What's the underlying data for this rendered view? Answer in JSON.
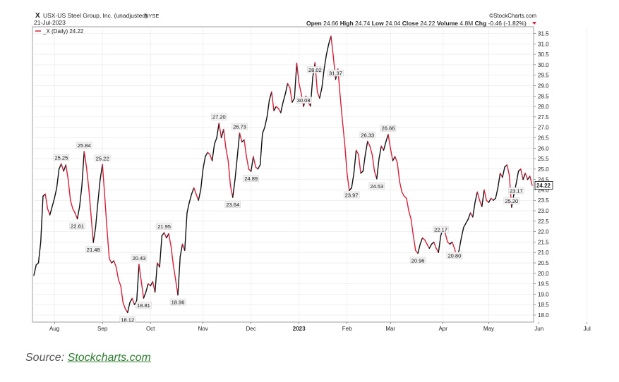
{
  "header": {
    "ticker": "X",
    "company": "USX-US Steel Group, Inc. (unadjusted)",
    "exchange": "NYSE",
    "date": "21-Jul-2023",
    "watermark": "©StockCharts.com",
    "ohlc": [
      {
        "label": "Open",
        "value": "24.66"
      },
      {
        "label": "High",
        "value": "24.74"
      },
      {
        "label": "Low",
        "value": "24.04"
      },
      {
        "label": "Close",
        "value": "24.22"
      },
      {
        "label": "Volume",
        "value": "4.8M"
      },
      {
        "label": "Chg",
        "value": "-0.46 (-1.82%)"
      }
    ],
    "legend": "_X (Daily) 24.22",
    "last_price": "24.22"
  },
  "source": {
    "prefix": "Source: ",
    "link": "Stockcharts.com"
  },
  "colors": {
    "up": "#111111",
    "down": "#d8203a",
    "grid": "#e6e6e6",
    "frame": "#888888",
    "chg_arrow": "#d8203a"
  },
  "chart_data": {
    "type": "line",
    "ylim": [
      17.8,
      31.8
    ],
    "y_ticks": [
      "18.0",
      "18.5",
      "19.0",
      "19.5",
      "20.0",
      "20.5",
      "21.0",
      "21.5",
      "22.0",
      "22.5",
      "23.0",
      "23.5",
      "24.0",
      "24.5",
      "25.0",
      "25.5",
      "26.0",
      "26.5",
      "27.0",
      "27.5",
      "28.0",
      "28.5",
      "29.0",
      "29.5",
      "30.0",
      "30.5",
      "31.0",
      "31.5"
    ],
    "x_ticks": [
      {
        "label": "Aug",
        "i": 9,
        "bold": false
      },
      {
        "label": "Sep",
        "i": 30,
        "bold": false
      },
      {
        "label": "Oct",
        "i": 51,
        "bold": false
      },
      {
        "label": "Nov",
        "i": 74,
        "bold": false
      },
      {
        "label": "Dec",
        "i": 95,
        "bold": false
      },
      {
        "label": "2023",
        "i": 116,
        "bold": true
      },
      {
        "label": "Feb",
        "i": 137,
        "bold": false
      },
      {
        "label": "Mar",
        "i": 156,
        "bold": false
      },
      {
        "label": "Apr",
        "i": 179,
        "bold": false
      },
      {
        "label": "May",
        "i": 199,
        "bold": false
      },
      {
        "label": "Jun",
        "i": 221,
        "bold": false
      },
      {
        "label": "Jul",
        "i": 242,
        "bold": false
      }
    ],
    "series": [
      {
        "values": [
          19.9,
          20.4,
          20.5,
          21.5,
          23.7,
          23.8,
          23.1,
          22.8,
          23.2,
          23.6,
          24.1,
          25.0,
          25.25,
          24.9,
          25.2,
          24.5,
          23.5,
          23.1,
          22.9,
          22.61,
          23.2,
          24.2,
          25.84,
          25.1,
          24.1,
          22.8,
          21.48,
          22.2,
          23.4,
          24.5,
          25.22,
          23.7,
          22.1,
          20.7,
          20.5,
          20.6,
          20.3,
          19.7,
          19.4,
          18.6,
          18.3,
          18.12,
          18.6,
          18.8,
          18.5,
          18.7,
          20.43,
          19.6,
          18.81,
          19.1,
          19.5,
          19.4,
          19.6,
          19.1,
          20.5,
          20.3,
          21.8,
          21.95,
          21.7,
          21.9,
          21.3,
          20.4,
          19.7,
          18.96,
          20.8,
          21.4,
          21.1,
          22.9,
          23.4,
          23.8,
          24.1,
          23.8,
          23.5,
          24.0,
          25.0,
          25.6,
          25.8,
          25.7,
          25.4,
          26.2,
          26.5,
          27.2,
          26.5,
          26.9,
          26.0,
          25.4,
          24.2,
          23.64,
          24.5,
          25.6,
          26.73,
          26.3,
          26.4,
          25.6,
          25.0,
          24.89,
          25.6,
          25.1,
          25.0,
          25.2,
          26.7,
          27.0,
          27.5,
          28.3,
          28.7,
          27.8,
          28.0,
          27.9,
          27.7,
          28.2,
          28.6,
          29.1,
          28.9,
          28.2,
          28.4,
          30.08,
          29.1,
          28.6,
          28.0,
          28.5,
          28.2,
          28.02,
          29.4,
          30.1,
          28.7,
          28.4,
          28.9,
          29.8,
          30.5,
          31.0,
          31.37,
          30.4,
          29.3,
          29.8,
          28.5,
          27.3,
          26.2,
          24.8,
          23.97,
          24.1,
          24.8,
          25.9,
          25.7,
          24.8,
          24.9,
          25.7,
          26.33,
          26.1,
          25.7,
          24.9,
          24.53,
          25.5,
          26.1,
          25.9,
          26.3,
          26.66,
          26.0,
          25.4,
          25.6,
          25.3,
          24.4,
          23.9,
          23.7,
          23.6,
          23.0,
          22.6,
          21.8,
          21.1,
          20.96,
          21.4,
          21.7,
          21.6,
          21.4,
          21.2,
          21.4,
          21.5,
          21.2,
          21.0,
          21.8,
          22.17,
          21.9,
          21.5,
          21.4,
          21.5,
          21.2,
          20.8,
          21.1,
          21.7,
          22.2,
          22.4,
          22.6,
          22.9,
          22.7,
          23.4,
          23.9,
          23.5,
          23.2,
          24.0,
          23.5,
          23.4,
          23.6,
          23.5,
          23.6,
          24.1,
          24.8,
          24.6,
          25.1,
          25.2,
          24.7,
          23.17,
          23.8,
          24.3,
          24.9,
          25.0,
          24.5,
          24.8,
          24.5,
          24.66,
          24.22
        ]
      }
    ],
    "annotations": [
      {
        "i": 12,
        "text": "25.25",
        "pos": "above"
      },
      {
        "i": 19,
        "text": "22.61",
        "pos": "below"
      },
      {
        "i": 22,
        "text": "25.84",
        "pos": "above"
      },
      {
        "i": 26,
        "text": "21.48",
        "pos": "below"
      },
      {
        "i": 30,
        "text": "25.22",
        "pos": "above"
      },
      {
        "i": 41,
        "text": "18.12",
        "pos": "below"
      },
      {
        "i": 46,
        "text": "20.43",
        "pos": "above"
      },
      {
        "i": 48,
        "text": "18.81",
        "pos": "below"
      },
      {
        "i": 57,
        "text": "21.95",
        "pos": "above"
      },
      {
        "i": 63,
        "text": "18.96",
        "pos": "below"
      },
      {
        "i": 81,
        "text": "27.20",
        "pos": "above"
      },
      {
        "i": 87,
        "text": "23.64",
        "pos": "below"
      },
      {
        "i": 90,
        "text": "26.73",
        "pos": "above"
      },
      {
        "i": 95,
        "text": "24.89",
        "pos": "below"
      },
      {
        "i": 118,
        "text": "30.08",
        "pos": "above"
      },
      {
        "i": 123,
        "text": "28.02",
        "pos": "below"
      },
      {
        "i": 132,
        "text": "31.37",
        "pos": "above"
      },
      {
        "i": 139,
        "text": "23.97",
        "pos": "below"
      },
      {
        "i": 146,
        "text": "26.33",
        "pos": "above"
      },
      {
        "i": 150,
        "text": "24.53",
        "pos": "below"
      },
      {
        "i": 155,
        "text": "26.66",
        "pos": "above"
      },
      {
        "i": 168,
        "text": "20.96",
        "pos": "below"
      },
      {
        "i": 178,
        "text": "22.17",
        "pos": "above"
      },
      {
        "i": 184,
        "text": "20.80",
        "pos": "below"
      },
      {
        "i": 209,
        "text": "25.20",
        "pos": "above"
      },
      {
        "i": 211,
        "text": "23.17",
        "pos": "below"
      }
    ]
  }
}
